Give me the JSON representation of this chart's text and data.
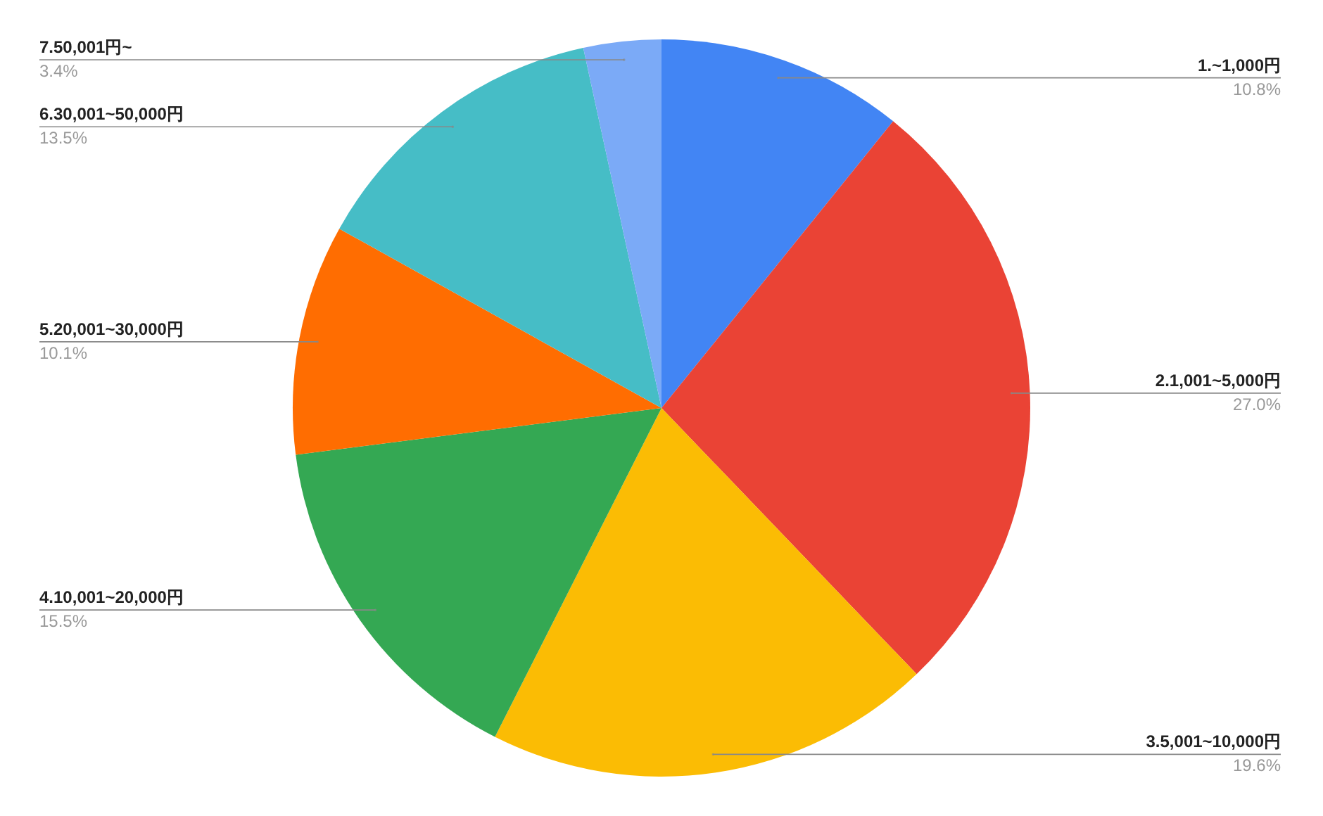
{
  "chart_data": {
    "type": "pie",
    "categories": [
      "1.~1,000円",
      "2.1,001~5,000円",
      "3.5,001~10,000円",
      "4.10,001~20,000円",
      "5.20,001~30,000円",
      "6.30,001~50,000円",
      "7.50,001円~"
    ],
    "values": [
      10.8,
      27.0,
      19.6,
      15.5,
      10.1,
      13.5,
      3.4
    ],
    "colors": [
      "#4285f4",
      "#ea4335",
      "#fbbc04",
      "#34a853",
      "#ff6d01",
      "#46bdc6",
      "#7baaf7"
    ],
    "value_labels": [
      "10.8%",
      "27.0%",
      "19.6%",
      "15.5%",
      "10.1%",
      "13.5%",
      "3.4%"
    ]
  }
}
